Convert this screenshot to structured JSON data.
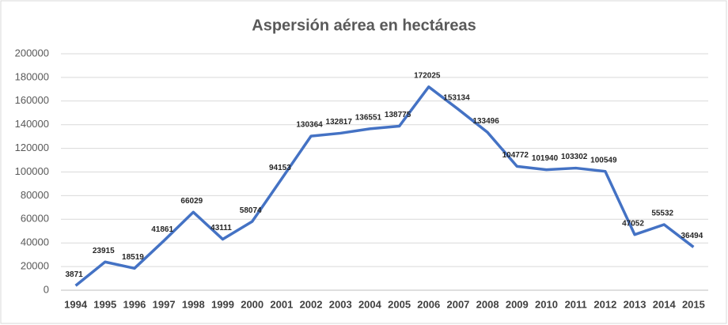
{
  "chart_data": {
    "type": "line",
    "title": "Aspersión aérea en hectáreas",
    "categories": [
      "1994",
      "1995",
      "1996",
      "1997",
      "1998",
      "1999",
      "2000",
      "2001",
      "2002",
      "2003",
      "2004",
      "2005",
      "2006",
      "2007",
      "2008",
      "2009",
      "2010",
      "2011",
      "2012",
      "2013",
      "2014",
      "2015"
    ],
    "series": [
      {
        "name": "Aspersión aérea",
        "color": "#4472c4",
        "values": [
          3871,
          23915,
          18519,
          41861,
          66029,
          43111,
          58074,
          94153,
          130364,
          132817,
          136551,
          138775,
          172025,
          153134,
          133496,
          104772,
          101940,
          103302,
          100549,
          47052,
          55532,
          36494
        ]
      }
    ],
    "ylim": [
      0,
      200000
    ],
    "yticks": [
      0,
      20000,
      40000,
      60000,
      80000,
      100000,
      120000,
      140000,
      160000,
      180000,
      200000
    ],
    "grid": true
  }
}
